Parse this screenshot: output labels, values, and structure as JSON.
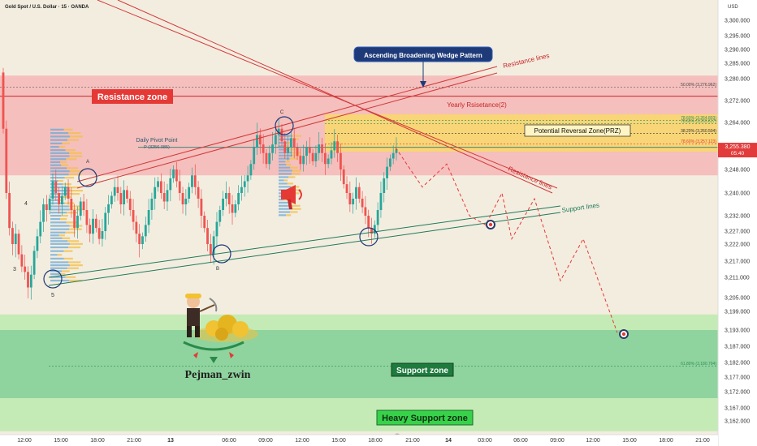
{
  "header": {
    "symbol": "Gold Spot / U.S. Dollar · 15 · OANDA",
    "currency": "USD"
  },
  "colors": {
    "up": "#26a69a",
    "down": "#ef5350",
    "resistance_fill": "#f4b6b6",
    "support_fill": "#7ccf92",
    "heavy_fill": "#bfeab0",
    "prz_fill": "#f8d86a",
    "bg": "#f3ede0",
    "channel": "#1e7a5a",
    "red_line": "#d23a3a",
    "label_red": "#e53935",
    "label_green": "#2e9e4f",
    "label_navy": "#1e3a78",
    "price_tag": "#e23b3b",
    "fib": "#2e8b57"
  },
  "labels": {
    "resistance_zone": "Resistance zone",
    "support_zone": "Support zone",
    "heavy_support_zone": "Heavy Support zone",
    "yearly_resistance": "Yearly Rsisetance(2)",
    "prz": "Potential Reversal Zone(PRZ)",
    "wedge": "Ascending Broadening Wedge Pattern",
    "resistance_lines_1": "Resistance lines",
    "resistance_lines_2": "Resistance lines",
    "support_lines": "Support lines",
    "pivot_title": "Daily Pivot Point",
    "pivot_value": "P (3256.085)",
    "author": "Pejman_zwin",
    "wave_a": "A",
    "wave_b": "B",
    "wave_c": "C",
    "wave_3": "3",
    "wave_4": "4",
    "wave_5": "5"
  },
  "fib_levels": [
    {
      "label": "50.00% (3,276.962)",
      "price": 3276.962,
      "color": "#444444"
    },
    {
      "label": "78.60% (3,264.803)",
      "price": 3264.803,
      "color": "#2e8b57"
    },
    {
      "label": "78.60% (3,263.617)",
      "price": 3263.617,
      "color": "#2e8b57"
    },
    {
      "label": "38.20% (3,260.504)",
      "price": 3260.504,
      "color": "#333333"
    },
    {
      "label": "78.60% (3,257.123)",
      "price": 3257.123,
      "color": "#e53935"
    },
    {
      "label": "61.80% (3,180.794)",
      "price": 3180.794,
      "color": "#2e8b57"
    }
  ],
  "price_tag": {
    "price": "3,255.380",
    "countdown": "05:40",
    "value": 3255.38
  },
  "chart_data": {
    "type": "candlestick",
    "title": "Gold Spot / U.S. Dollar · 15 · OANDA",
    "x_ticks": [
      "12:00",
      "15:00",
      "18:00",
      "21:00",
      "13",
      "06:00",
      "09:00",
      "12:00",
      "15:00",
      "18:00",
      "21:00",
      "14",
      "03:00",
      "06:00",
      "09:00",
      "12:00",
      "15:00",
      "18:00",
      "21:00"
    ],
    "y_ticks": [
      3300,
      3295,
      3290,
      3285,
      3280,
      3272,
      3264,
      3256,
      3248,
      3240,
      3232,
      3227,
      3222,
      3217,
      3211,
      3205,
      3199,
      3193,
      3187,
      3182,
      3177,
      3172,
      3167,
      3162
    ],
    "y_tick_labels": [
      "3,300.000",
      "3,295.000",
      "3,290.000",
      "3,285.000",
      "3,280.000",
      "3,272.000",
      "3,264.000",
      "3,256.000",
      "3,248.000",
      "3,240.000",
      "3,232.000",
      "3,227.000",
      "3,222.000",
      "3,217.000",
      "3,211.000",
      "3,205.000",
      "3,199.000",
      "3,193.000",
      "3,187.000",
      "3,182.000",
      "3,177.000",
      "3,172.000",
      "3,167.000",
      "3,162.000"
    ],
    "ylim": [
      3158,
      3305
    ],
    "zones": {
      "resistance": [
        3246,
        3281
      ],
      "prz": [
        3254.5,
        3267
      ],
      "support": [
        3170,
        3193
      ],
      "heavy_support": [
        3158,
        3170
      ],
      "yearly_resistance": 3273.6,
      "pivot": 3256.085
    },
    "closes": [
      3262,
      3240,
      3228,
      3222,
      3226,
      3219,
      3215,
      3213,
      3208,
      3212,
      3220,
      3225,
      3230,
      3236,
      3234,
      3238,
      3244,
      3240,
      3236,
      3239,
      3242,
      3238,
      3234,
      3228,
      3232,
      3237,
      3234,
      3229,
      3226,
      3231,
      3228,
      3224,
      3227,
      3233,
      3236,
      3239,
      3242,
      3240,
      3236,
      3241,
      3238,
      3234,
      3230,
      3226,
      3222,
      3225,
      3229,
      3234,
      3238,
      3242,
      3244,
      3240,
      3237,
      3241,
      3245,
      3248,
      3244,
      3240,
      3236,
      3238,
      3242,
      3246,
      3242,
      3238,
      3232,
      3228,
      3222,
      3219,
      3225,
      3230,
      3234,
      3238,
      3240,
      3236,
      3233,
      3236,
      3240,
      3242,
      3244,
      3246,
      3250,
      3256,
      3260,
      3257,
      3254,
      3250,
      3254,
      3257,
      3260,
      3262,
      3258,
      3254,
      3256,
      3259,
      3256,
      3253,
      3250,
      3253,
      3256,
      3254,
      3251,
      3254,
      3257,
      3254,
      3250,
      3252,
      3255,
      3258,
      3254,
      3248,
      3243,
      3240,
      3236,
      3238,
      3242,
      3238,
      3235,
      3232,
      3228,
      3226,
      3229,
      3234,
      3240,
      3245,
      3249,
      3252,
      3254,
      3255.38
    ],
    "projection": [
      [
        3256,
        487
      ],
      [
        3242,
        520
      ],
      [
        3250,
        550
      ],
      [
        3232,
        578
      ],
      [
        3229,
        598
      ],
      [
        3240,
        618
      ],
      [
        3224,
        630
      ],
      [
        3238,
        658
      ],
      [
        3210,
        690
      ],
      [
        3224,
        718
      ],
      [
        3192,
        760
      ]
    ]
  }
}
